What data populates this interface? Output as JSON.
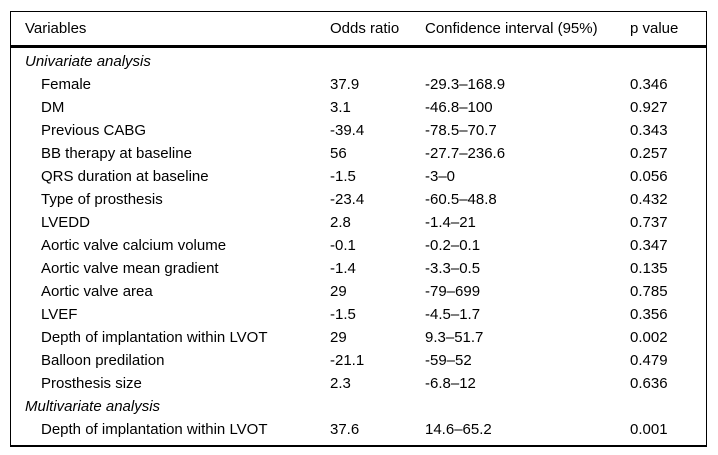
{
  "table": {
    "columns": [
      "Variables",
      "Odds ratio",
      "Confidence interval (95%)",
      "p value"
    ],
    "sections": [
      {
        "label": "Univariate analysis",
        "rows": [
          {
            "variable": "Female",
            "odds_ratio": "37.9",
            "ci": "-29.3–168.9",
            "p": "0.346"
          },
          {
            "variable": "DM",
            "odds_ratio": "3.1",
            "ci": "-46.8–100",
            "p": "0.927"
          },
          {
            "variable": "Previous CABG",
            "odds_ratio": "-39.4",
            "ci": "-78.5–70.7",
            "p": "0.343"
          },
          {
            "variable": "BB therapy at baseline",
            "odds_ratio": "56",
            "ci": "-27.7–236.6",
            "p": "0.257"
          },
          {
            "variable": "QRS duration at baseline",
            "odds_ratio": "-1.5",
            "ci": "-3–0",
            "p": "0.056"
          },
          {
            "variable": "Type of prosthesis",
            "odds_ratio": "-23.4",
            "ci": "-60.5–48.8",
            "p": "0.432"
          },
          {
            "variable": "LVEDD",
            "odds_ratio": "2.8",
            "ci": "-1.4–21",
            "p": "0.737"
          },
          {
            "variable": "Aortic valve calcium volume",
            "odds_ratio": "-0.1",
            "ci": "-0.2–0.1",
            "p": "0.347"
          },
          {
            "variable": "Aortic valve mean gradient",
            "odds_ratio": "-1.4",
            "ci": "-3.3–0.5",
            "p": "0.135"
          },
          {
            "variable": "Aortic valve area",
            "odds_ratio": "29",
            "ci": "-79–699",
            "p": "0.785"
          },
          {
            "variable": "LVEF",
            "odds_ratio": "-1.5",
            "ci": "-4.5–1.7",
            "p": "0.356"
          },
          {
            "variable": "Depth of implantation within LVOT",
            "odds_ratio": "29",
            "ci": "9.3–51.7",
            "p": "0.002"
          },
          {
            "variable": "Balloon predilation",
            "odds_ratio": "-21.1",
            "ci": "-59–52",
            "p": "0.479"
          },
          {
            "variable": "Prosthesis size",
            "odds_ratio": "2.3",
            "ci": "-6.8–12",
            "p": "0.636"
          }
        ]
      },
      {
        "label": "Multivariate analysis",
        "rows": [
          {
            "variable": "Depth of implantation within LVOT",
            "odds_ratio": "37.6",
            "ci": "14.6–65.2",
            "p": "0.001"
          }
        ]
      }
    ]
  },
  "colors": {
    "text": "#000000",
    "background": "#ffffff",
    "border": "#000000"
  }
}
